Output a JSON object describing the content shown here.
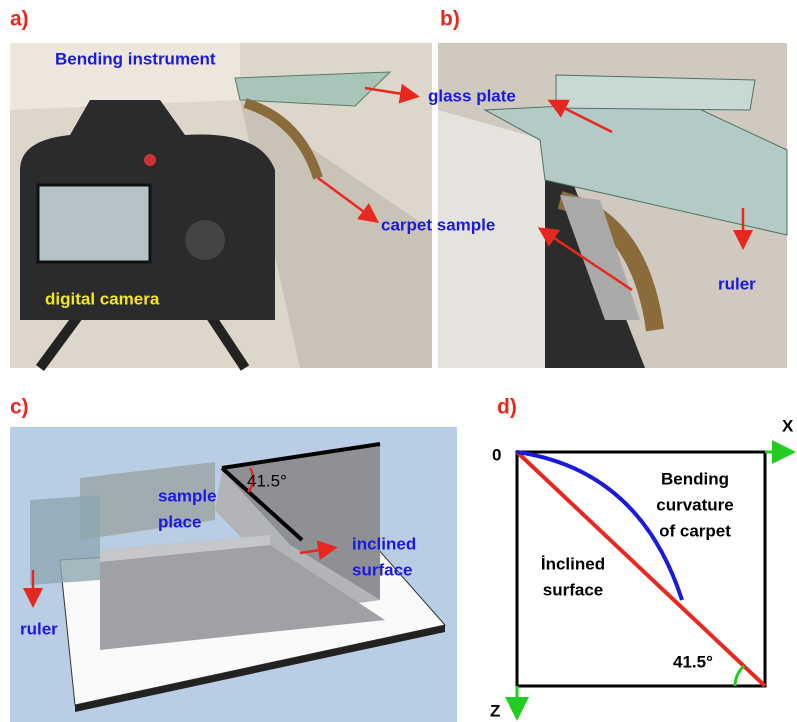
{
  "panel_a": {
    "label": "a)",
    "instrument": "Bending instrument",
    "camera": "digital camera"
  },
  "panel_b": {
    "label": "b)",
    "ruler": "ruler"
  },
  "shared": {
    "glass_plate": "glass plate",
    "carpet_sample": "carpet sample"
  },
  "panel_c": {
    "label": "c)",
    "angle": "41.5°",
    "sample_place": [
      "sample",
      "place"
    ],
    "inclined_surface": [
      "inclined",
      "surface"
    ],
    "ruler": "ruler"
  },
  "panel_d": {
    "label": "d)",
    "x_axis": "X",
    "z_axis": "Z",
    "origin": "0",
    "curvature": [
      "Bending",
      "curvature",
      "of carpet"
    ],
    "inclined": [
      "İnclined",
      "surface"
    ],
    "angle": "41.5°"
  }
}
